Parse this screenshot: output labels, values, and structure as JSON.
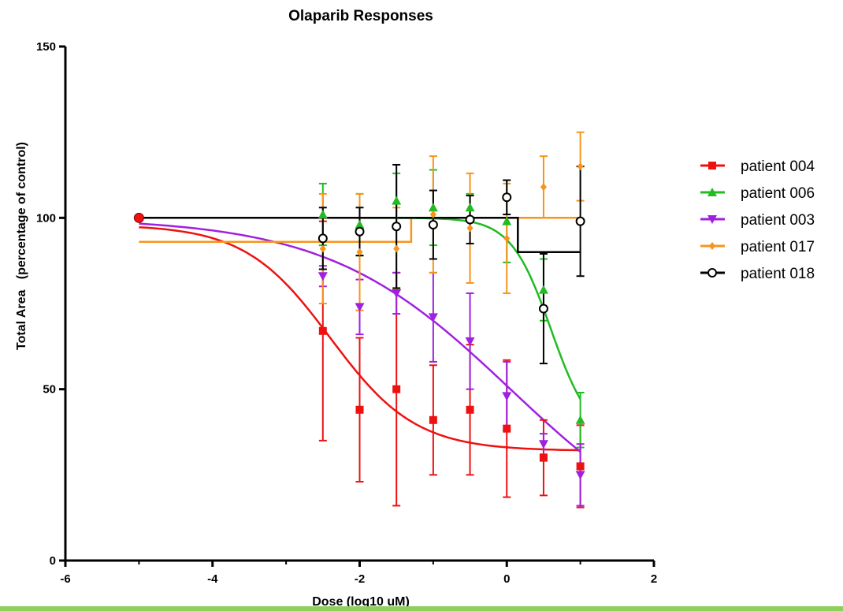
{
  "chart_data": {
    "type": "scatter",
    "title": "Olaparib Responses",
    "xlabel": "Dose (log10 uM)",
    "ylabel": "Total Area   (percentage of control)",
    "xlim": [
      -6,
      2
    ],
    "ylim": [
      0,
      150
    ],
    "x_ticks": [
      "-6",
      "-4",
      "-2",
      "0",
      "2"
    ],
    "y_ticks": [
      "0",
      "50",
      "100",
      "150"
    ],
    "grid": false,
    "legend_position": "right",
    "control_point": {
      "x": -5,
      "y": 100,
      "color": "#ee1111"
    },
    "series": [
      {
        "name": "patient 004",
        "color": "#ee1111",
        "marker": "square",
        "x": [
          -2.5,
          -2,
          -1.5,
          -1,
          -0.5,
          0,
          0.5,
          1
        ],
        "y": [
          67,
          44,
          50,
          41,
          44,
          38.5,
          30,
          27.5
        ],
        "err": [
          32,
          21,
          34,
          16,
          19,
          20,
          11,
          12
        ],
        "fit": {
          "model": "4pl",
          "top": 98,
          "bottom": 32,
          "logEC50": -2.4,
          "hill": 0.75
        }
      },
      {
        "name": "patient 006",
        "color": "#22bb22",
        "marker": "triangle-up",
        "x": [
          -2.5,
          -2,
          -1.5,
          -1,
          -0.5,
          0,
          0.5,
          1
        ],
        "y": [
          101,
          98,
          105,
          103,
          103,
          99,
          79,
          41
        ],
        "err": [
          9,
          9,
          8,
          11,
          4,
          12,
          9,
          8
        ],
        "fit": {
          "model": "4pl",
          "top": 100,
          "bottom": 35,
          "logEC50": 0.6,
          "hill": 1.6
        }
      },
      {
        "name": "patient 003",
        "color": "#a020e0",
        "marker": "triangle-down",
        "x": [
          -2.5,
          -2,
          -1.5,
          -1,
          -0.5,
          0,
          0.5,
          1
        ],
        "y": [
          83,
          74,
          78,
          71,
          64,
          48,
          34,
          25
        ],
        "err": [
          3,
          8,
          6,
          13,
          14,
          10,
          3,
          9
        ],
        "fit": {
          "model": "4pl",
          "top": 100,
          "bottom": 0,
          "logEC50": 0.05,
          "hill": 0.35
        }
      },
      {
        "name": "patient 017",
        "color": "#f7941d",
        "marker": "diamond",
        "x": [
          -2.5,
          -2,
          -1.5,
          -1,
          -0.5,
          0,
          0.5,
          1
        ],
        "y": [
          91,
          90,
          91,
          101,
          97,
          94,
          109,
          115
        ],
        "err": [
          16,
          17,
          12,
          17,
          16,
          16,
          9,
          10
        ],
        "fit": {
          "model": "step",
          "points": [
            [
              -5,
              93
            ],
            [
              -1.3,
              93
            ],
            [
              -1.3,
              100
            ],
            [
              1,
              100
            ]
          ]
        }
      },
      {
        "name": "patient 018",
        "color": "#000000",
        "marker": "circle-open",
        "x": [
          -2.5,
          -2,
          -1.5,
          -1,
          -0.5,
          0,
          0.5,
          1
        ],
        "y": [
          94,
          96,
          97.5,
          98,
          99.5,
          106,
          73.5,
          99
        ],
        "err": [
          9,
          7,
          18,
          10,
          7,
          5,
          16,
          16
        ],
        "fit": {
          "model": "step",
          "points": [
            [
              -5,
              100
            ],
            [
              0.15,
              100
            ],
            [
              0.15,
              90
            ],
            [
              1,
              90
            ]
          ]
        }
      }
    ]
  }
}
